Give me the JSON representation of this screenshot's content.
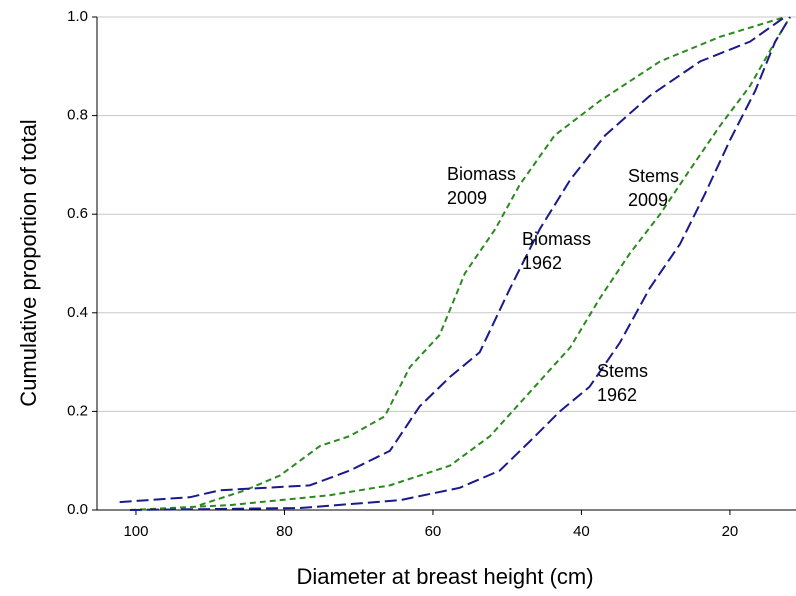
{
  "chart_data": {
    "type": "line",
    "xlabel": "Diameter at breast height (cm)",
    "ylabel": "Cumulative proportion of total",
    "xlim": [
      105.25,
      11.1
    ],
    "xticks": [
      100,
      80,
      60,
      40,
      20
    ],
    "ylim": [
      0,
      1
    ],
    "yticks": [
      {
        "value": 0,
        "label": "0.0"
      },
      0.2,
      0.4,
      0.6,
      0.8,
      {
        "value": 1,
        "label": "1.0"
      }
    ],
    "grid": true,
    "annotations": [
      [
        "Biomass",
        "2009"
      ],
      [
        "Biomass",
        "1962"
      ],
      [
        "Stems",
        "2009"
      ],
      [
        "Stems",
        "1962"
      ]
    ],
    "series": [
      {
        "color": "#2b8a1e",
        "dash": "short",
        "x": [
          91.4,
          85.3,
          80.6,
          75.2,
          71.2,
          66.5,
          63.1,
          59.1,
          55.7,
          51.6,
          48.3,
          43.6,
          37.5,
          29.4,
          21.3,
          12.6
        ],
        "values": [
          0.01,
          0.04,
          0.07,
          0.13,
          0.15,
          0.19,
          0.29,
          0.355,
          0.48,
          0.57,
          0.66,
          0.76,
          0.83,
          0.91,
          0.96,
          1.0
        ]
      },
      {
        "color": "#1a1a8c",
        "dash": "long",
        "x": [
          102.2,
          92.7,
          88.7,
          76.6,
          71.2,
          65.8,
          61.8,
          57.7,
          53.7,
          49.6,
          45.6,
          41.5,
          36.8,
          30.8,
          24.0,
          17.3,
          12.6
        ],
        "values": [
          0.016,
          0.026,
          0.04,
          0.05,
          0.08,
          0.12,
          0.21,
          0.27,
          0.32,
          0.45,
          0.57,
          0.67,
          0.76,
          0.84,
          0.91,
          0.95,
          1.0
        ]
      },
      {
        "color": "#2b8a1e",
        "dash": "short",
        "x": [
          100.8,
          87.3,
          73.9,
          65.8,
          57.7,
          52.3,
          46.9,
          41.5,
          37.5,
          33.5,
          29.4,
          25.4,
          21.3,
          17.3,
          13.9,
          11.9
        ],
        "values": [
          0,
          0.01,
          0.03,
          0.05,
          0.09,
          0.15,
          0.24,
          0.33,
          0.43,
          0.52,
          0.6,
          0.69,
          0.78,
          0.86,
          0.95,
          1.0
        ]
      },
      {
        "color": "#1a1a8c",
        "dash": "long",
        "x": [
          100.8,
          77.9,
          64.4,
          56.4,
          51.0,
          46.9,
          42.9,
          38.9,
          34.8,
          30.8,
          26.7,
          23.4,
          20.0,
          16.6,
          13.9,
          11.9
        ],
        "values": [
          0,
          0.004,
          0.02,
          0.045,
          0.08,
          0.14,
          0.2,
          0.25,
          0.34,
          0.45,
          0.54,
          0.64,
          0.75,
          0.85,
          0.95,
          1.0
        ]
      }
    ]
  }
}
